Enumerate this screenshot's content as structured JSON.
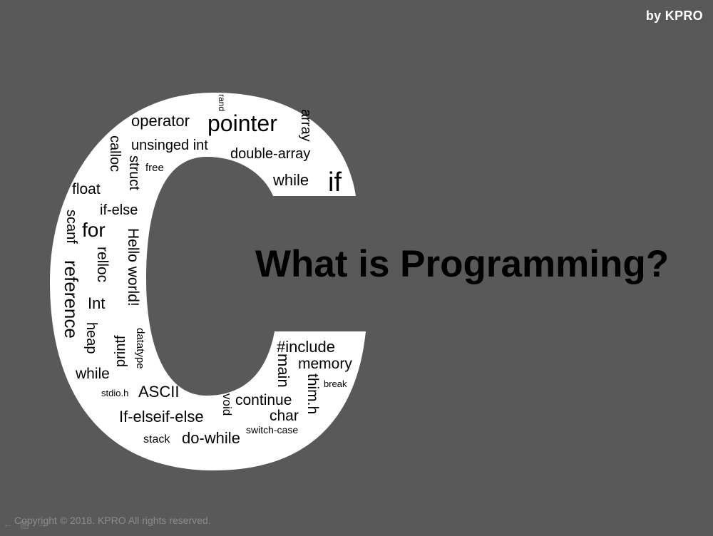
{
  "brand": "by KPRO",
  "title": "What is Programming?",
  "copyright": "Copyright © 2018. KPRO All rights reserved.",
  "big_letter": "C",
  "colors": {
    "background": "#595959",
    "letter": "#ffffff",
    "text": "#000000"
  },
  "words": {
    "rand": "rand",
    "operator": "operator",
    "pointer": "pointer",
    "array": "array",
    "unsinged_int": "unsinged int",
    "double_array": "double-array",
    "calloc": "calloc",
    "free": "free",
    "struct": "struct",
    "while1": "while",
    "if": "if",
    "float": "float",
    "if_else": "if-else",
    "scanf": "scanf",
    "for": "for",
    "hello_world": "Hello world!",
    "relloc": "relloc",
    "reference": "reference",
    "int": "Int",
    "heap": "heap",
    "printf": "printf",
    "datatype": "datatype",
    "while2": "while",
    "include": "#include",
    "memory": "memory",
    "main": "main",
    "break": "break",
    "stdio": "stdio.h",
    "ascii": "ASCII",
    "void": "void",
    "continue": "continue",
    "thim": "thim.h",
    "if_elseif_else": "If-elseif-else",
    "char": "char",
    "switch_case": "switch-case",
    "stack": "stack",
    "do_while": "do-while"
  },
  "nav_icons": [
    "back-arrow-icon",
    "menu-icon",
    "forward-arrow-icon"
  ]
}
